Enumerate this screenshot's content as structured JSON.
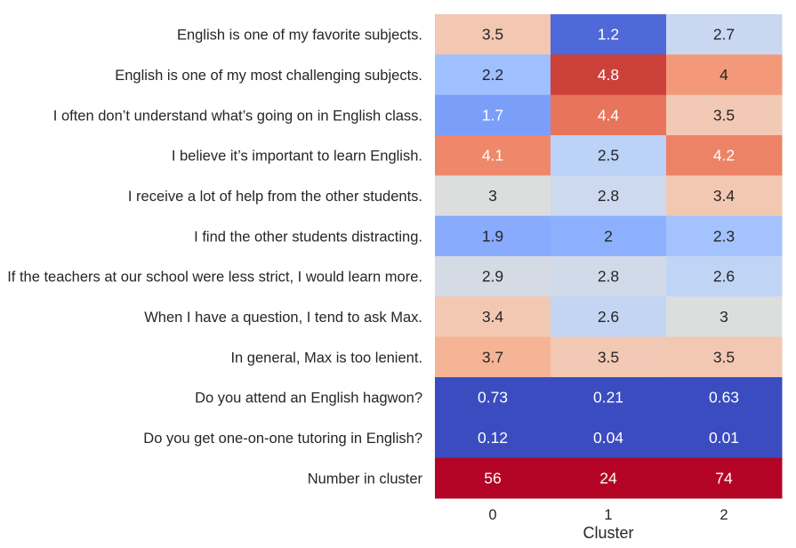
{
  "chart_data": {
    "type": "heatmap",
    "title": "",
    "xlabel": "Cluster",
    "ylabel": "",
    "columns": [
      "0",
      "1",
      "2"
    ],
    "rows": [
      "English is one of my favorite subjects.",
      "English is one of my most challenging subjects.",
      "I often don’t understand what’s going on in English class.",
      "I believe it’s important to learn English.",
      "I receive a lot of help from the other students.",
      "I find the other students distracting.",
      "If the teachers at our school were less strict, I would learn more.",
      "When I have a question, I tend to ask Max.",
      "In general, Max is too lenient.",
      "Do you attend an English hagwon?",
      "Do you get one-on-one tutoring in English?",
      "Number in cluster"
    ],
    "values": [
      [
        3.5,
        1.2,
        2.7
      ],
      [
        2.2,
        4.8,
        4
      ],
      [
        1.7,
        4.4,
        3.5
      ],
      [
        4.1,
        2.5,
        4.2
      ],
      [
        3,
        2.8,
        3.4
      ],
      [
        1.9,
        2,
        2.3
      ],
      [
        2.9,
        2.8,
        2.6
      ],
      [
        3.4,
        2.6,
        3
      ],
      [
        3.7,
        3.5,
        3.5
      ],
      [
        0.73,
        0.21,
        0.63
      ],
      [
        0.12,
        0.04,
        0.01
      ],
      [
        56,
        24,
        74
      ]
    ],
    "value_labels": [
      [
        "3.5",
        "1.2",
        "2.7"
      ],
      [
        "2.2",
        "4.8",
        "4"
      ],
      [
        "1.7",
        "4.4",
        "3.5"
      ],
      [
        "4.1",
        "2.5",
        "4.2"
      ],
      [
        "3",
        "2.8",
        "3.4"
      ],
      [
        "1.9",
        "2",
        "2.3"
      ],
      [
        "2.9",
        "2.8",
        "2.6"
      ],
      [
        "3.4",
        "2.6",
        "3"
      ],
      [
        "3.7",
        "3.5",
        "3.5"
      ],
      [
        "0.73",
        "0.21",
        "0.63"
      ],
      [
        "0.12",
        "0.04",
        "0.01"
      ],
      [
        "56",
        "24",
        "74"
      ]
    ],
    "cell_colors": [
      [
        "#f3c7b1",
        "#4f69d9",
        "#c9d7f0"
      ],
      [
        "#9fbfff",
        "#cc403a",
        "#f39879"
      ],
      [
        "#7b9ff9",
        "#e7745b",
        "#f2c9b4"
      ],
      [
        "#ef886b",
        "#bcd2f7",
        "#ed8366"
      ],
      [
        "#dcdddd",
        "#ccd9ee",
        "#f3c8b2"
      ],
      [
        "#88abfd",
        "#8db0fe",
        "#a3c2fe"
      ],
      [
        "#d5dbe5",
        "#d1dae9",
        "#c0d4f5"
      ],
      [
        "#f3c8b2",
        "#c4d5f3",
        "#dcdddd"
      ],
      [
        "#f6b497",
        "#f2c9b4",
        "#f3c8b2"
      ],
      [
        "#3b4cc0",
        "#3b4cc0",
        "#3b4cc0"
      ],
      [
        "#3b4cc0",
        "#3b4cc0",
        "#3b4cc0"
      ],
      [
        "#b40426",
        "#b40426",
        "#b40426"
      ]
    ],
    "text_colors": [
      [
        "#262626",
        "#ffffff",
        "#262626"
      ],
      [
        "#262626",
        "#ffffff",
        "#262626"
      ],
      [
        "#ffffff",
        "#ffffff",
        "#262626"
      ],
      [
        "#ffffff",
        "#262626",
        "#ffffff"
      ],
      [
        "#262626",
        "#262626",
        "#262626"
      ],
      [
        "#262626",
        "#262626",
        "#262626"
      ],
      [
        "#262626",
        "#262626",
        "#262626"
      ],
      [
        "#262626",
        "#262626",
        "#262626"
      ],
      [
        "#262626",
        "#262626",
        "#262626"
      ],
      [
        "#ffffff",
        "#ffffff",
        "#ffffff"
      ],
      [
        "#ffffff",
        "#ffffff",
        "#ffffff"
      ],
      [
        "#ffffff",
        "#ffffff",
        "#ffffff"
      ]
    ],
    "colormap": "coolwarm",
    "colorbar": false,
    "legend": "none",
    "grid": false
  }
}
